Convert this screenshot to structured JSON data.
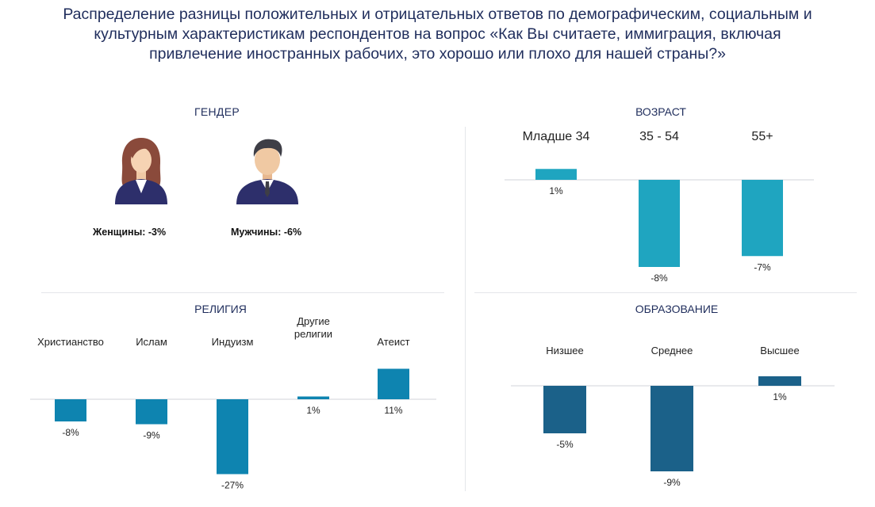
{
  "title": {
    "line1": "Распределение разницы положительных и отрицательных ответов по демографическим, социальным и",
    "line2": "культурным характеристикам респондентов на вопрос «Как Вы считаете, иммиграция, включая",
    "line3": "привлечение иностранных рабочих, это хорошо или плохо для нашей страны?»"
  },
  "gender": {
    "title": "ГЕНДЕР",
    "women_label": "Женщины: -3%",
    "men_label": "Мужчины: -6%",
    "women_value": -3,
    "men_value": -6,
    "women_icon": "woman-avatar-icon",
    "men_icon": "man-avatar-icon"
  },
  "chart_data": [
    {
      "id": "age",
      "type": "bar",
      "title": "ВОЗРАСТ",
      "categories": [
        "Младше 34",
        "35 - 54",
        "55+"
      ],
      "values": [
        1,
        -8,
        -7
      ],
      "labels": [
        "1%",
        "-8%",
        "-7%"
      ],
      "color": "#1fa5c0",
      "ylim": [
        -8,
        1
      ]
    },
    {
      "id": "religion",
      "type": "bar",
      "title": "РЕЛИГИЯ",
      "categories": [
        "Христианство",
        "Ислам",
        "Индуизм",
        "Другие религии",
        "Атеист"
      ],
      "values": [
        -8,
        -9,
        -27,
        1,
        11
      ],
      "labels": [
        "-8%",
        "-9%",
        "-27%",
        "1%",
        "11%"
      ],
      "color": "#0e84b0",
      "ylim": [
        -27,
        11
      ]
    },
    {
      "id": "education",
      "type": "bar",
      "title": "ОБРАЗОВАНИЕ",
      "categories": [
        "Низшее",
        "Среднее",
        "Высшее"
      ],
      "values": [
        -5,
        -9,
        1
      ],
      "labels": [
        "-5%",
        "-9%",
        "1%"
      ],
      "color": "#1b6189",
      "ylim": [
        -9,
        1
      ]
    }
  ]
}
